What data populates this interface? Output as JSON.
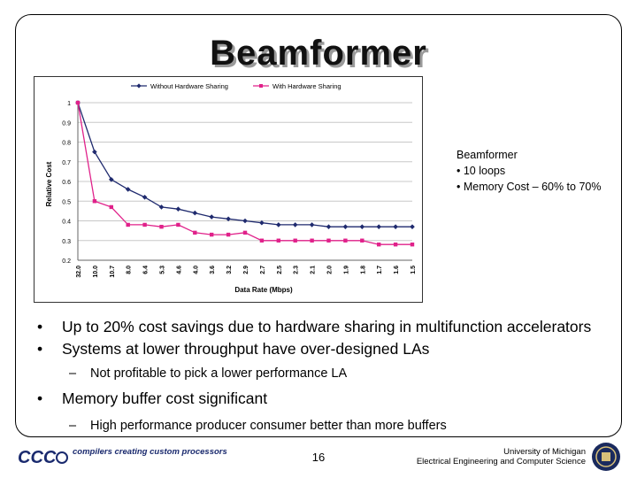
{
  "slide": {
    "title": "Beamformer",
    "side_note": {
      "heading": "Beamformer",
      "items": [
        "• 10 loops",
        "• Memory Cost – 60% to 70%"
      ]
    },
    "bullets": [
      {
        "level": 1,
        "marker": "•",
        "text": "Up to 20% cost savings due to hardware sharing in multifunction accelerators"
      },
      {
        "level": 1,
        "marker": "•",
        "text": "Systems at lower throughput have over-designed LAs"
      },
      {
        "level": 2,
        "marker": "–",
        "text": "Not profitable to pick a lower performance LA"
      },
      {
        "level": 1,
        "marker": "•",
        "text": "Memory buffer cost significant"
      },
      {
        "level": 2,
        "marker": "–",
        "text": "High performance producer consumer better than more buffers"
      }
    ],
    "footer": {
      "logo_text": "CCC",
      "tagline": "compilers creating custom processors",
      "page_number": "16",
      "affiliation_line1": "University of Michigan",
      "affiliation_line2": "Electrical Engineering and Computer Science"
    }
  },
  "chart_data": {
    "type": "line",
    "xlabel": "Data Rate (Mbps)",
    "ylabel": "Relative Cost",
    "categories": [
      "32.0",
      "10.0",
      "10.7",
      "8.0",
      "6.4",
      "5.3",
      "4.6",
      "4.0",
      "3.6",
      "3.2",
      "2.9",
      "2.7",
      "2.5",
      "2.3",
      "2.1",
      "2.0",
      "1.9",
      "1.8",
      "1.7",
      "1.6",
      "1.5"
    ],
    "ylim": [
      0.2,
      1.0
    ],
    "yticks": [
      "1",
      "0.9",
      "0.8",
      "0.7",
      "0.6",
      "0.5",
      "0.4",
      "0.3",
      "0.2"
    ],
    "grid": true,
    "legend_position": "top",
    "series": [
      {
        "name": "Without Hardware Sharing",
        "color": "#1f2a6e",
        "marker": "diamond",
        "values": [
          1.0,
          0.75,
          0.61,
          0.56,
          0.52,
          0.47,
          0.46,
          0.44,
          0.42,
          0.41,
          0.4,
          0.39,
          0.38,
          0.38,
          0.38,
          0.37,
          0.37,
          0.37,
          0.37,
          0.37,
          0.37
        ]
      },
      {
        "name": "With Hardware Sharing",
        "color": "#e0218a",
        "marker": "square",
        "values": [
          1.0,
          0.5,
          0.47,
          0.38,
          0.38,
          0.37,
          0.38,
          0.34,
          0.33,
          0.33,
          0.34,
          0.3,
          0.3,
          0.3,
          0.3,
          0.3,
          0.3,
          0.3,
          0.28,
          0.28,
          0.28
        ]
      }
    ]
  }
}
